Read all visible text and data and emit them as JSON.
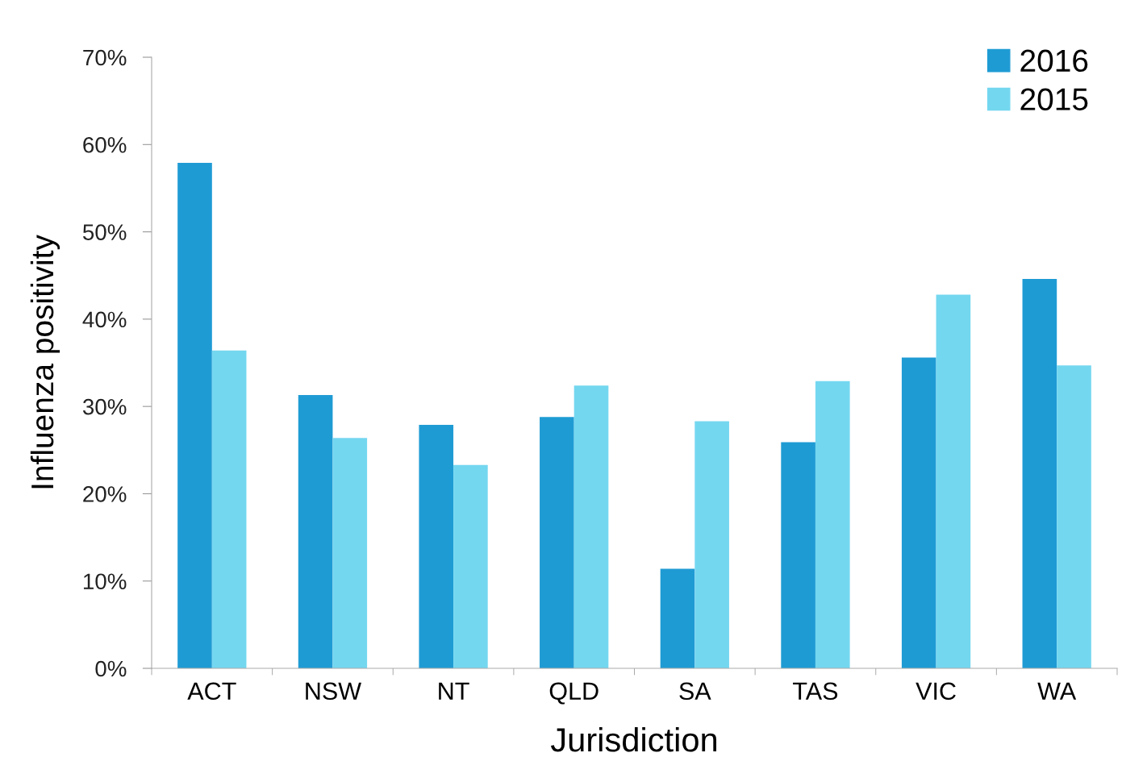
{
  "chart_data": {
    "type": "bar",
    "xlabel": "Jurisdiction",
    "ylabel": "Influenza positivity",
    "categories": [
      "ACT",
      "NSW",
      "NT",
      "QLD",
      "SA",
      "TAS",
      "VIC",
      "WA"
    ],
    "series": [
      {
        "name": "2016",
        "color": "#1f9bd4",
        "values": [
          57.9,
          31.3,
          27.9,
          28.8,
          11.4,
          25.9,
          35.6,
          44.6
        ]
      },
      {
        "name": "2015",
        "color": "#74d7f0",
        "values": [
          36.4,
          26.4,
          23.3,
          32.4,
          28.3,
          32.9,
          42.8,
          34.7
        ]
      }
    ],
    "ylim": [
      0,
      70
    ],
    "yticks": [
      {
        "value": 0,
        "label": "0%"
      },
      {
        "value": 10,
        "label": "10%"
      },
      {
        "value": 20,
        "label": "20%"
      },
      {
        "value": 30,
        "label": "30%"
      },
      {
        "value": 40,
        "label": "40%"
      },
      {
        "value": 50,
        "label": "50%"
      },
      {
        "value": 60,
        "label": "60%"
      },
      {
        "value": 70,
        "label": "70%"
      }
    ],
    "grid": false,
    "legend": "top right"
  }
}
